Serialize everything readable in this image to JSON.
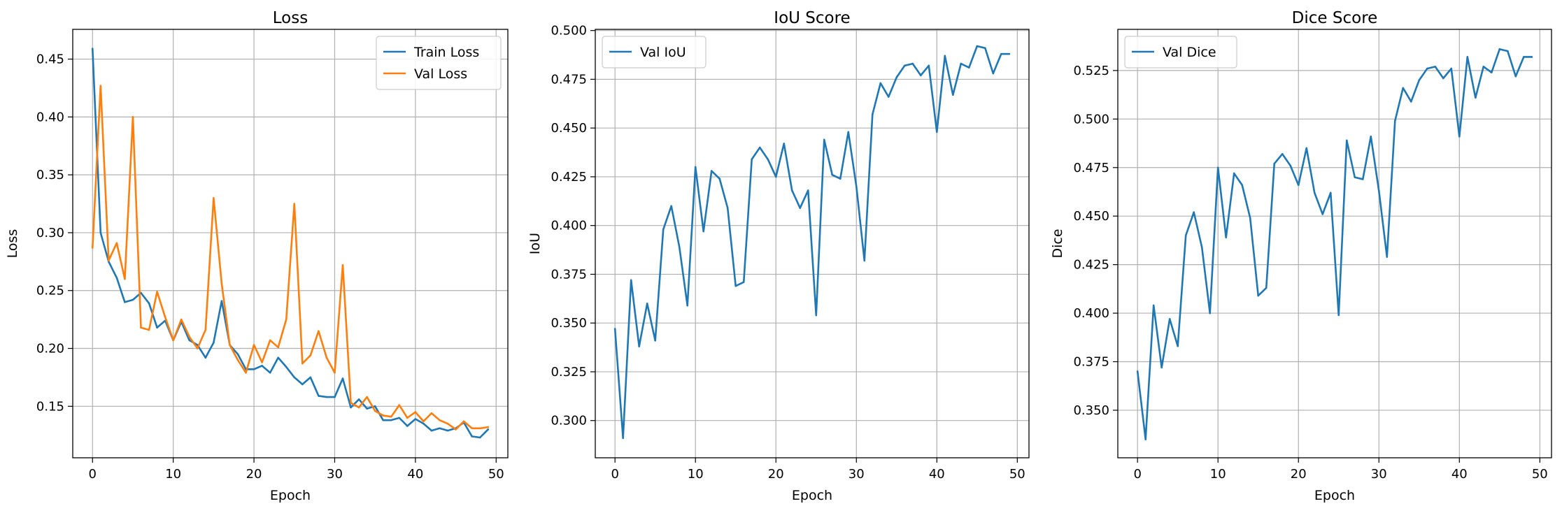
{
  "chart_data": [
    {
      "type": "line",
      "title": "Loss",
      "xlabel": "Epoch",
      "ylabel": "Loss",
      "xlim": [
        -2.45,
        51.45
      ],
      "ylim": [
        0.1055,
        0.4757
      ],
      "xticks": [
        0,
        10,
        20,
        30,
        40,
        50
      ],
      "yticks": [
        0.15,
        0.2,
        0.25,
        0.3,
        0.35,
        0.4,
        0.45
      ],
      "ytick_labels": [
        "0.15",
        "0.20",
        "0.25",
        "0.30",
        "0.35",
        "0.40",
        "0.45"
      ],
      "grid": true,
      "legend": "top-right",
      "x": [
        0,
        1,
        2,
        3,
        4,
        5,
        6,
        7,
        8,
        9,
        10,
        11,
        12,
        13,
        14,
        15,
        16,
        17,
        18,
        19,
        20,
        21,
        22,
        23,
        24,
        25,
        26,
        27,
        28,
        29,
        30,
        31,
        32,
        33,
        34,
        35,
        36,
        37,
        38,
        39,
        40,
        41,
        42,
        43,
        44,
        45,
        46,
        47,
        48,
        49
      ],
      "series": [
        {
          "name": "Train Loss",
          "color": "#1f77b4",
          "values": [
            0.459,
            0.3,
            0.275,
            0.261,
            0.24,
            0.242,
            0.248,
            0.239,
            0.218,
            0.224,
            0.207,
            0.223,
            0.207,
            0.203,
            0.192,
            0.205,
            0.241,
            0.203,
            0.195,
            0.182,
            0.182,
            0.185,
            0.179,
            0.192,
            0.184,
            0.175,
            0.169,
            0.175,
            0.159,
            0.158,
            0.158,
            0.174,
            0.149,
            0.156,
            0.148,
            0.15,
            0.138,
            0.138,
            0.14,
            0.133,
            0.139,
            0.135,
            0.129,
            0.131,
            0.129,
            0.131,
            0.136,
            0.124,
            0.123,
            0.13
          ]
        },
        {
          "name": "Val Loss",
          "color": "#ff7f0e",
          "values": [
            0.287,
            0.427,
            0.276,
            0.291,
            0.26,
            0.4,
            0.218,
            0.216,
            0.249,
            0.227,
            0.207,
            0.225,
            0.21,
            0.2,
            0.216,
            0.33,
            0.256,
            0.203,
            0.19,
            0.179,
            0.203,
            0.188,
            0.207,
            0.201,
            0.225,
            0.325,
            0.187,
            0.194,
            0.215,
            0.192,
            0.179,
            0.272,
            0.153,
            0.149,
            0.158,
            0.146,
            0.142,
            0.141,
            0.151,
            0.14,
            0.145,
            0.137,
            0.144,
            0.138,
            0.135,
            0.13,
            0.137,
            0.131,
            0.131,
            0.132
          ]
        }
      ]
    },
    {
      "type": "line",
      "title": "IoU Score",
      "xlabel": "Epoch",
      "ylabel": "IoU",
      "xlim": [
        -2.45,
        51.45
      ],
      "ylim": [
        0.2809,
        0.5006
      ],
      "xticks": [
        0,
        10,
        20,
        30,
        40,
        50
      ],
      "yticks": [
        0.3,
        0.325,
        0.35,
        0.375,
        0.4,
        0.425,
        0.45,
        0.475,
        0.5
      ],
      "ytick_labels": [
        "0.300",
        "0.325",
        "0.350",
        "0.375",
        "0.400",
        "0.425",
        "0.450",
        "0.475",
        "0.500"
      ],
      "grid": true,
      "legend": "top-left",
      "x": [
        0,
        1,
        2,
        3,
        4,
        5,
        6,
        7,
        8,
        9,
        10,
        11,
        12,
        13,
        14,
        15,
        16,
        17,
        18,
        19,
        20,
        21,
        22,
        23,
        24,
        25,
        26,
        27,
        28,
        29,
        30,
        31,
        32,
        33,
        34,
        35,
        36,
        37,
        38,
        39,
        40,
        41,
        42,
        43,
        44,
        45,
        46,
        47,
        48,
        49
      ],
      "series": [
        {
          "name": "Val IoU",
          "color": "#1f77b4",
          "values": [
            0.347,
            0.291,
            0.372,
            0.338,
            0.36,
            0.341,
            0.398,
            0.41,
            0.389,
            0.359,
            0.43,
            0.397,
            0.428,
            0.424,
            0.409,
            0.369,
            0.371,
            0.434,
            0.44,
            0.434,
            0.425,
            0.442,
            0.418,
            0.409,
            0.418,
            0.354,
            0.444,
            0.426,
            0.424,
            0.448,
            0.42,
            0.382,
            0.457,
            0.473,
            0.466,
            0.476,
            0.482,
            0.483,
            0.477,
            0.482,
            0.448,
            0.487,
            0.467,
            0.483,
            0.481,
            0.492,
            0.491,
            0.478,
            0.488,
            0.488
          ]
        }
      ]
    },
    {
      "type": "line",
      "title": "Dice Score",
      "xlabel": "Epoch",
      "ylabel": "Dice",
      "xlim": [
        -2.45,
        51.45
      ],
      "ylim": [
        0.3255,
        0.5462
      ],
      "xticks": [
        0,
        10,
        20,
        30,
        40,
        50
      ],
      "yticks": [
        0.35,
        0.375,
        0.4,
        0.425,
        0.45,
        0.475,
        0.5,
        0.525
      ],
      "ytick_labels": [
        "0.350",
        "0.375",
        "0.400",
        "0.425",
        "0.450",
        "0.475",
        "0.500",
        "0.525"
      ],
      "grid": true,
      "legend": "top-left",
      "x": [
        0,
        1,
        2,
        3,
        4,
        5,
        6,
        7,
        8,
        9,
        10,
        11,
        12,
        13,
        14,
        15,
        16,
        17,
        18,
        19,
        20,
        21,
        22,
        23,
        24,
        25,
        26,
        27,
        28,
        29,
        30,
        31,
        32,
        33,
        34,
        35,
        36,
        37,
        38,
        39,
        40,
        41,
        42,
        43,
        44,
        45,
        46,
        47,
        48,
        49
      ],
      "series": [
        {
          "name": "Val Dice",
          "color": "#1f77b4",
          "values": [
            0.37,
            0.335,
            0.404,
            0.372,
            0.397,
            0.383,
            0.44,
            0.452,
            0.434,
            0.4,
            0.475,
            0.439,
            0.472,
            0.466,
            0.449,
            0.409,
            0.413,
            0.477,
            0.482,
            0.476,
            0.466,
            0.485,
            0.462,
            0.451,
            0.462,
            0.399,
            0.489,
            0.47,
            0.469,
            0.491,
            0.463,
            0.429,
            0.499,
            0.516,
            0.509,
            0.52,
            0.526,
            0.527,
            0.521,
            0.526,
            0.491,
            0.532,
            0.511,
            0.527,
            0.524,
            0.536,
            0.535,
            0.522,
            0.532,
            0.532
          ]
        }
      ]
    }
  ]
}
